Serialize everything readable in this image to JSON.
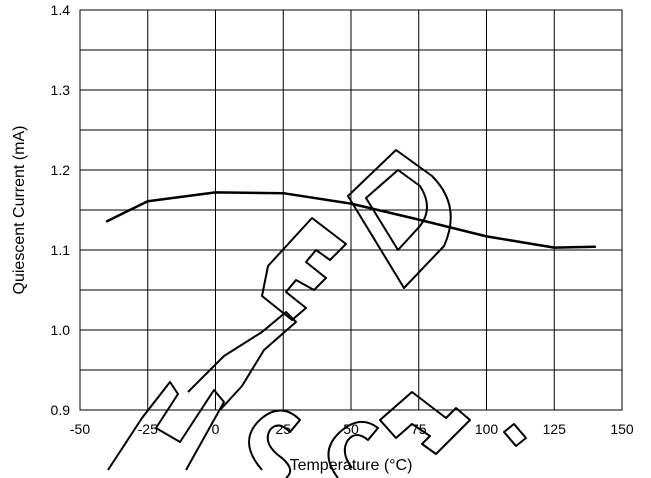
{
  "chart_data": {
    "type": "line",
    "title": "",
    "xlabel": "Temperature (°C)",
    "ylabel": "Quiescent Current (mA)",
    "xlim": [
      -50,
      150
    ],
    "ylim": [
      0.9,
      1.4
    ],
    "x_ticks": [
      "-50",
      "-25",
      "0",
      "25",
      "50",
      "75",
      "100",
      "125",
      "150"
    ],
    "y_ticks": [
      "0.9",
      "1.0",
      "1.1",
      "1.2",
      "1.3",
      "1.4"
    ],
    "grid": true,
    "series": [
      {
        "x": [
          -40,
          -25,
          0,
          25,
          50,
          75,
          100,
          125,
          140
        ],
        "y": [
          1.136,
          1.161,
          1.172,
          1.171,
          1.158,
          1.138,
          1.117,
          1.103,
          1.104
        ]
      }
    ],
    "colors": {
      "line": "#000000",
      "grid": "#000000",
      "watermark": "#000000"
    },
    "watermark_text": "NOT RECOMMENDED FOR NEW DESIGN"
  }
}
